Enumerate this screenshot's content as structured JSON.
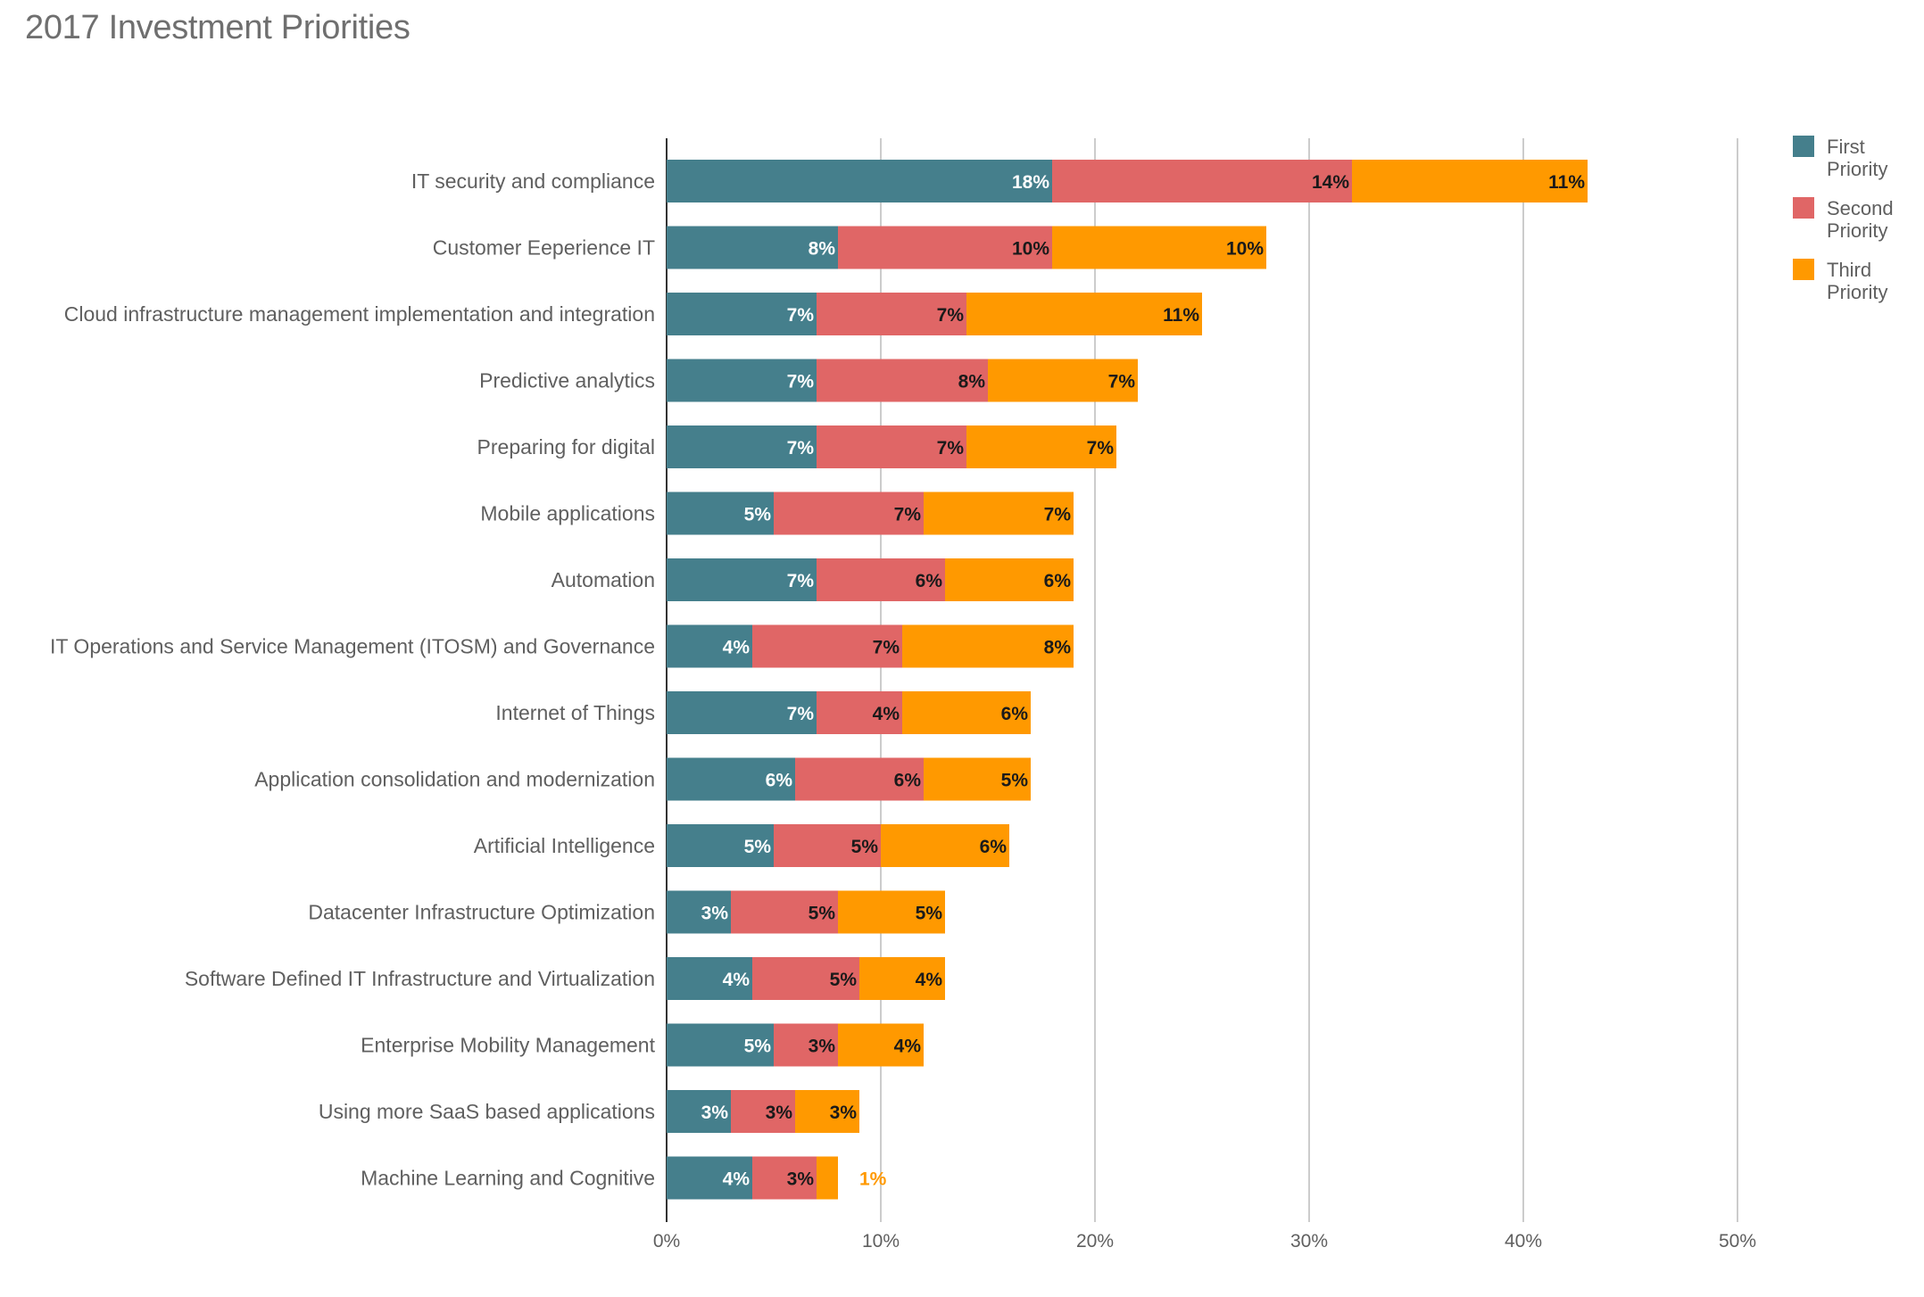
{
  "chart_data": {
    "type": "bar",
    "orientation": "horizontal",
    "stacked": true,
    "title": "2017 Investment Priorities",
    "xlim": [
      0,
      50
    ],
    "x_ticks": [
      "0%",
      "10%",
      "20%",
      "30%",
      "40%",
      "50%"
    ],
    "grid": true,
    "legend_position": "top-right",
    "categories": [
      "IT security and compliance",
      "Customer Eeperience IT",
      "Cloud infrastructure management implementation and integration",
      "Predictive analytics",
      "Preparing for digital",
      "Mobile applications",
      "Automation",
      "IT Operations and Service Management (ITOSM) and Governance",
      "Internet of Things",
      "Application consolidation and modernization",
      "Artificial Intelligence",
      "Datacenter Infrastructure Optimization",
      "Software Defined IT Infrastructure and Virtualization",
      "Enterprise Mobility Management",
      "Using more SaaS based applications",
      "Machine Learning and Cognitive"
    ],
    "series": [
      {
        "name": "First Priority",
        "legend_lines": [
          "First",
          "Priority"
        ],
        "color": "#457f8c",
        "label_color": "#ffffff",
        "values": [
          18,
          8,
          7,
          7,
          7,
          5,
          7,
          4,
          7,
          6,
          5,
          3,
          4,
          5,
          3,
          4
        ],
        "labels": [
          "18%",
          "8%",
          "7%",
          "7%",
          "7%",
          "5%",
          "7%",
          "4%",
          "7%",
          "6%",
          "5%",
          "3%",
          "4%",
          "5%",
          "3%",
          "4%"
        ]
      },
      {
        "name": "Second Priority",
        "legend_lines": [
          "Second",
          "Priority"
        ],
        "color": "#e06666",
        "label_color": "#1a1a1a",
        "values": [
          14,
          10,
          7,
          8,
          7,
          7,
          6,
          7,
          4,
          6,
          5,
          5,
          5,
          3,
          3,
          3
        ],
        "labels": [
          "14%",
          "10%",
          "7%",
          "8%",
          "7%",
          "7%",
          "6%",
          "7%",
          "4%",
          "6%",
          "5%",
          "5%",
          "5%",
          "3%",
          "3%",
          "3%"
        ]
      },
      {
        "name": "Third Priority",
        "legend_lines": [
          "Third",
          "Priority"
        ],
        "color": "#ff9900",
        "label_color": "#1a1a1a",
        "outside_label_color": "#ff9900",
        "values": [
          11,
          10,
          11,
          7,
          7,
          7,
          6,
          8,
          6,
          5,
          6,
          5,
          4,
          4,
          3,
          1
        ],
        "labels": [
          "11%",
          "10%",
          "11%",
          "7%",
          "7%",
          "7%",
          "6%",
          "8%",
          "6%",
          "5%",
          "6%",
          "5%",
          "4%",
          "4%",
          "3%",
          "1%"
        ]
      }
    ]
  }
}
